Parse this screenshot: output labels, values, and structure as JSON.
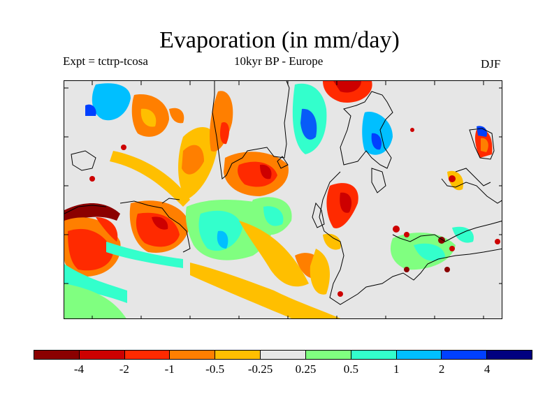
{
  "header": {
    "title": "Evaporation (in mm/day)",
    "experiment": "Expt = tctrp-tcosa",
    "period": "10kyr BP - Europe",
    "season": "DJF"
  },
  "colorbar": {
    "colors": [
      "#8b0000",
      "#cd0000",
      "#ff2a00",
      "#ff7f00",
      "#ffbf00",
      "#e6e6e6",
      "#80ff80",
      "#33ffcc",
      "#00bfff",
      "#0040ff",
      "#000080"
    ],
    "labels": [
      "-4",
      "-2",
      "-1",
      "-0.5",
      "-0.25",
      "0.25",
      "0.5",
      "1",
      "2",
      "4"
    ]
  },
  "map": {
    "background": "#e6e6e6",
    "coastline_color": "#000000"
  }
}
